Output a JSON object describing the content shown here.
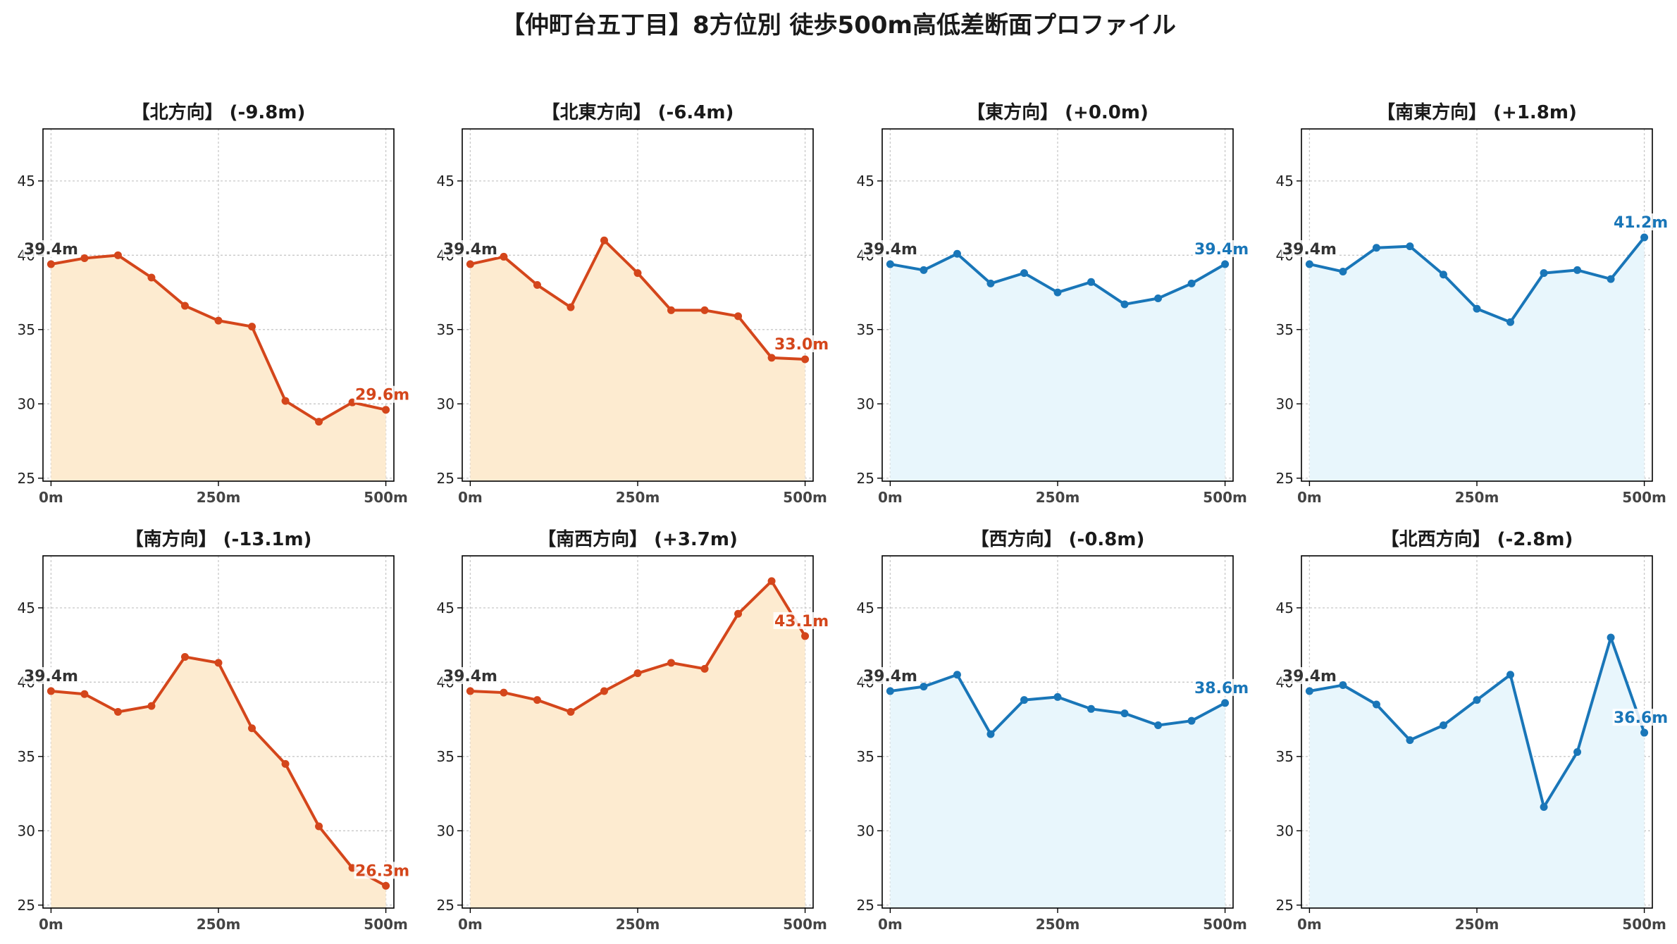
{
  "title": "【仲町台五丁目】8方位別 徒歩500m高低差断面プロファイル",
  "colors": {
    "down_line": "#d4461b",
    "down_fill": "#fdebd0",
    "up_line": "#1976b8",
    "up_fill": "#e8f6fc",
    "start_label": "#333333"
  },
  "chart_data": [
    {
      "type": "area",
      "title": "【北方向】 (-9.8m)",
      "trend": "down",
      "x": [
        0,
        50,
        100,
        150,
        200,
        250,
        300,
        350,
        400,
        450,
        500
      ],
      "y": [
        39.4,
        39.8,
        40.0,
        38.5,
        36.6,
        35.6,
        35.2,
        30.2,
        28.8,
        30.1,
        29.6
      ],
      "xticks": [
        "0m",
        "250m",
        "500m"
      ],
      "yticks": [
        25,
        30,
        35,
        40,
        45
      ],
      "ylim": [
        24.8,
        48.5
      ],
      "xlim": [
        -12,
        512
      ],
      "start_label": "39.4m",
      "end_label": "29.6m",
      "grid": true
    },
    {
      "type": "area",
      "title": "【北東方向】 (-6.4m)",
      "trend": "down",
      "x": [
        0,
        50,
        100,
        150,
        200,
        250,
        300,
        350,
        400,
        450,
        500
      ],
      "y": [
        39.4,
        39.9,
        38.0,
        36.5,
        41.0,
        38.8,
        36.3,
        36.3,
        35.9,
        33.1,
        33.0
      ],
      "xticks": [
        "0m",
        "250m",
        "500m"
      ],
      "yticks": [
        25,
        30,
        35,
        40,
        45
      ],
      "ylim": [
        24.8,
        48.5
      ],
      "xlim": [
        -12,
        512
      ],
      "start_label": "39.4m",
      "end_label": "33.0m",
      "grid": true
    },
    {
      "type": "area",
      "title": "【東方向】 (+0.0m)",
      "trend": "up",
      "x": [
        0,
        50,
        100,
        150,
        200,
        250,
        300,
        350,
        400,
        450,
        500
      ],
      "y": [
        39.4,
        39.0,
        40.1,
        38.1,
        38.8,
        37.5,
        38.2,
        36.7,
        37.1,
        38.1,
        39.4
      ],
      "xticks": [
        "0m",
        "250m",
        "500m"
      ],
      "yticks": [
        25,
        30,
        35,
        40,
        45
      ],
      "ylim": [
        24.8,
        48.5
      ],
      "xlim": [
        -12,
        512
      ],
      "start_label": "39.4m",
      "end_label": "39.4m",
      "grid": true
    },
    {
      "type": "area",
      "title": "【南東方向】 (+1.8m)",
      "trend": "up",
      "x": [
        0,
        50,
        100,
        150,
        200,
        250,
        300,
        350,
        400,
        450,
        500
      ],
      "y": [
        39.4,
        38.9,
        40.5,
        40.6,
        38.7,
        36.4,
        35.5,
        38.8,
        39.0,
        38.4,
        41.2
      ],
      "xticks": [
        "0m",
        "250m",
        "500m"
      ],
      "yticks": [
        25,
        30,
        35,
        40,
        45
      ],
      "ylim": [
        24.8,
        48.5
      ],
      "xlim": [
        -12,
        512
      ],
      "start_label": "39.4m",
      "end_label": "41.2m",
      "grid": true
    },
    {
      "type": "area",
      "title": "【南方向】 (-13.1m)",
      "trend": "down",
      "x": [
        0,
        50,
        100,
        150,
        200,
        250,
        300,
        350,
        400,
        450,
        500
      ],
      "y": [
        39.4,
        39.2,
        38.0,
        38.4,
        41.7,
        41.3,
        36.9,
        34.5,
        30.3,
        27.5,
        26.3
      ],
      "xticks": [
        "0m",
        "250m",
        "500m"
      ],
      "yticks": [
        25,
        30,
        35,
        40,
        45
      ],
      "ylim": [
        24.8,
        48.5
      ],
      "xlim": [
        -12,
        512
      ],
      "start_label": "39.4m",
      "end_label": "26.3m",
      "grid": true
    },
    {
      "type": "area",
      "title": "【南西方向】 (+3.7m)",
      "trend": "down",
      "x": [
        0,
        50,
        100,
        150,
        200,
        250,
        300,
        350,
        400,
        450,
        500
      ],
      "y": [
        39.4,
        39.3,
        38.8,
        38.0,
        39.4,
        40.6,
        41.3,
        40.9,
        44.6,
        46.8,
        43.1
      ],
      "xticks": [
        "0m",
        "250m",
        "500m"
      ],
      "yticks": [
        25,
        30,
        35,
        40,
        45
      ],
      "ylim": [
        24.8,
        48.5
      ],
      "xlim": [
        -12,
        512
      ],
      "start_label": "39.4m",
      "end_label": "43.1m",
      "grid": true
    },
    {
      "type": "area",
      "title": "【西方向】 (-0.8m)",
      "trend": "up",
      "x": [
        0,
        50,
        100,
        150,
        200,
        250,
        300,
        350,
        400,
        450,
        500
      ],
      "y": [
        39.4,
        39.7,
        40.5,
        36.5,
        38.8,
        39.0,
        38.2,
        37.9,
        37.1,
        37.4,
        38.6
      ],
      "xticks": [
        "0m",
        "250m",
        "500m"
      ],
      "yticks": [
        25,
        30,
        35,
        40,
        45
      ],
      "ylim": [
        24.8,
        48.5
      ],
      "xlim": [
        -12,
        512
      ],
      "start_label": "39.4m",
      "end_label": "38.6m",
      "grid": true
    },
    {
      "type": "area",
      "title": "【北西方向】 (-2.8m)",
      "trend": "up",
      "x": [
        0,
        50,
        100,
        150,
        200,
        250,
        300,
        350,
        400,
        450,
        500
      ],
      "y": [
        39.4,
        39.8,
        38.5,
        36.1,
        37.1,
        38.8,
        40.5,
        31.6,
        35.3,
        43.0,
        36.6
      ],
      "xticks": [
        "0m",
        "250m",
        "500m"
      ],
      "yticks": [
        25,
        30,
        35,
        40,
        45
      ],
      "ylim": [
        24.8,
        48.5
      ],
      "xlim": [
        -12,
        512
      ],
      "start_label": "39.4m",
      "end_label": "36.6m",
      "grid": true
    }
  ]
}
